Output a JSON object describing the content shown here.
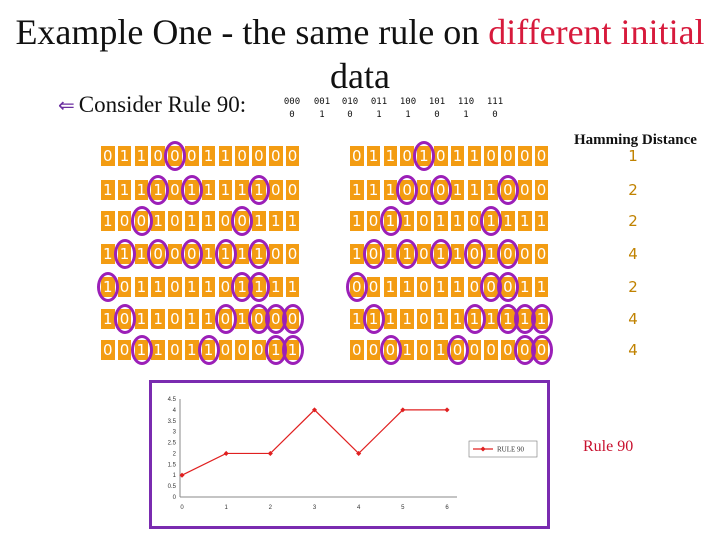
{
  "title": {
    "part1": "Example One - the same rule on ",
    "part2": "different initial",
    "part3": "data",
    "highlight_color": "#d71a3c"
  },
  "bullet": {
    "icon": "left-arrow-icon",
    "text": "Consider Rule 90:"
  },
  "rule_table": {
    "neighborhoods": [
      "000",
      "001",
      "010",
      "011",
      "100",
      "101",
      "110",
      "111"
    ],
    "outputs": [
      "0",
      "1",
      "0",
      "1",
      "1",
      "0",
      "1",
      "0"
    ]
  },
  "grid_left": [
    "011000110000",
    "111101111100",
    "100101100111",
    "111000111100",
    "101101101111",
    "101101101000",
    "001101100011"
  ],
  "grid_right": [
    "011010110000",
    "111000111000",
    "101101101111",
    "101101101000",
    "001101100011",
    "111101111111",
    "000101000000"
  ],
  "hamming": {
    "header": "Hamming Distance",
    "values": [
      "1",
      "2",
      "2",
      "4",
      "2",
      "4",
      "4"
    ]
  },
  "caption": "Rule 90",
  "chart_data": {
    "type": "line",
    "x": [
      0,
      1,
      2,
      3,
      4,
      5,
      6
    ],
    "series": [
      {
        "name": "RULE 90",
        "values": [
          1,
          2,
          2,
          4,
          2,
          4,
          4
        ],
        "color": "#e02020"
      }
    ],
    "ylim": [
      0,
      4.5
    ],
    "yticks": [
      "0",
      "0.5",
      "1",
      "1.5",
      "2",
      "2.5",
      "3",
      "3.5",
      "4",
      "4.5"
    ],
    "xticks": [
      "0",
      "1",
      "2",
      "3",
      "4",
      "5",
      "6"
    ],
    "legend": "right",
    "grid": false
  }
}
